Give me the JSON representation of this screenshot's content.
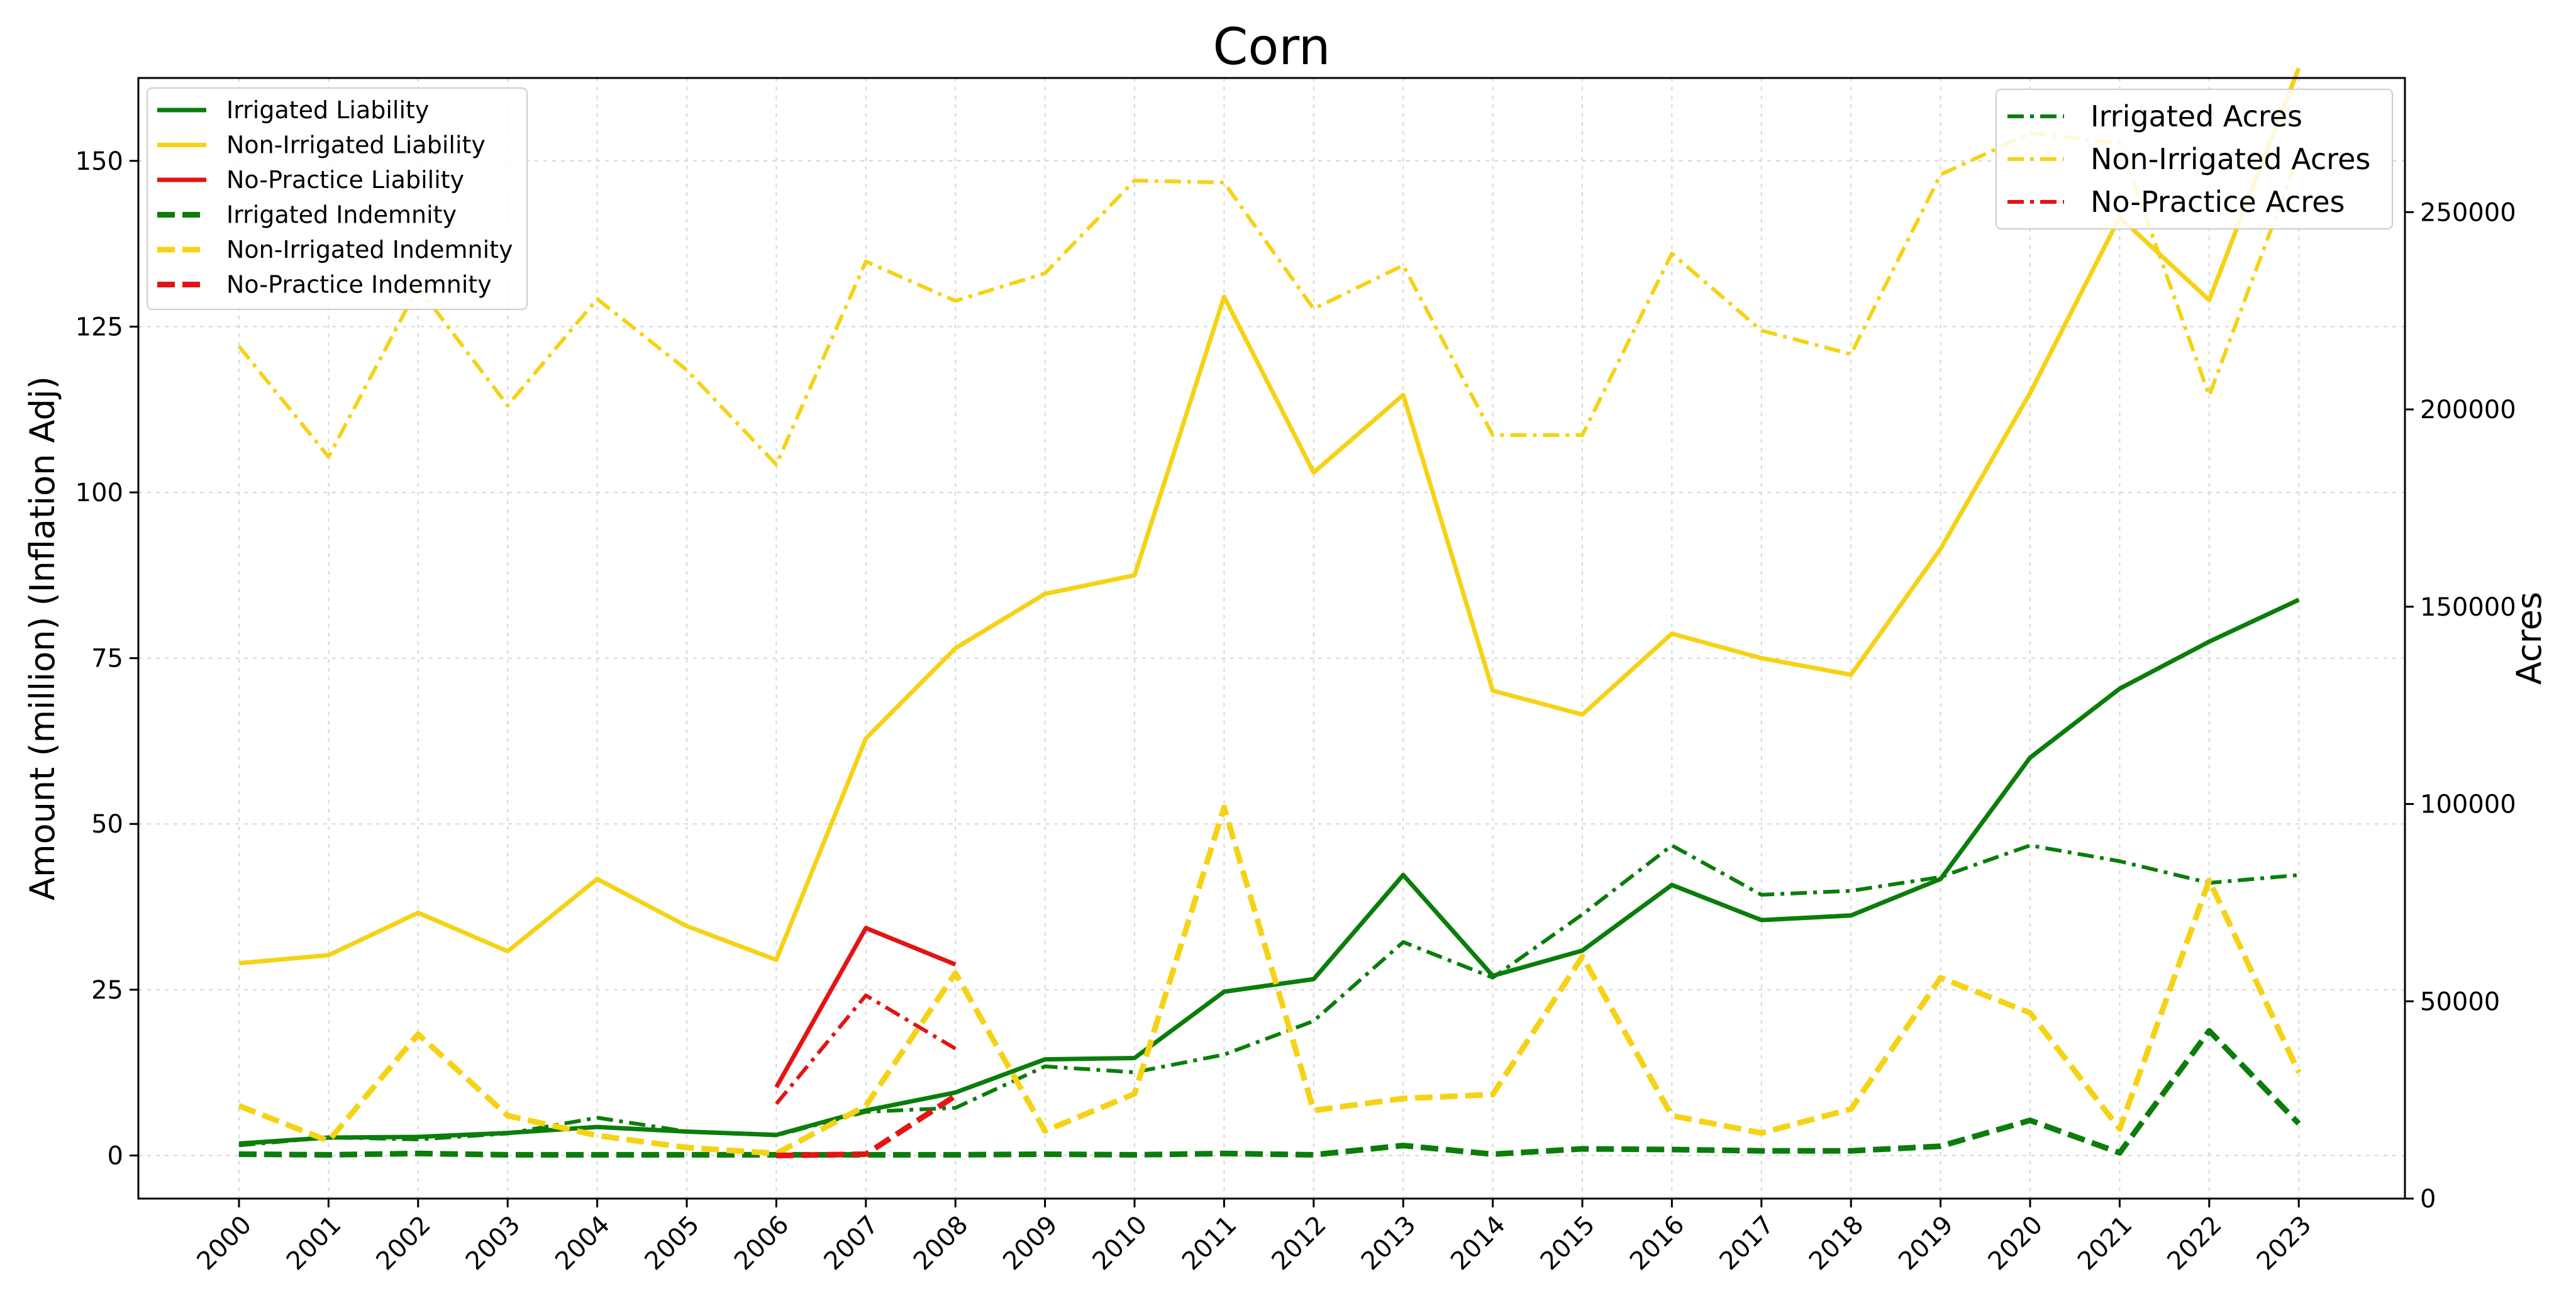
{
  "chart_data": {
    "type": "line",
    "title": "Corn",
    "ylabel_left": "Amount (million) (Inflation Adj)",
    "ylabel_right": "Acres",
    "xlabel": "",
    "x": [
      2000,
      2001,
      2002,
      2003,
      2004,
      2005,
      2006,
      2007,
      2008,
      2009,
      2010,
      2011,
      2012,
      2013,
      2014,
      2015,
      2016,
      2017,
      2018,
      2019,
      2020,
      2021,
      2022,
      2023
    ],
    "x_tick_labels": [
      "2000",
      "2001",
      "2002",
      "2003",
      "2004",
      "2005",
      "2006",
      "2007",
      "2008",
      "2009",
      "2010",
      "2011",
      "2012",
      "2013",
      "2014",
      "2015",
      "2016",
      "2017",
      "2018",
      "2019",
      "2020",
      "2021",
      "2022",
      "2023"
    ],
    "ylim_left": [
      -6.5,
      162.5
    ],
    "yticks_left": [
      0,
      25,
      50,
      75,
      100,
      125,
      150
    ],
    "ylim_right": [
      0,
      284000
    ],
    "yticks_right": [
      0,
      50000,
      100000,
      150000,
      200000,
      250000
    ],
    "grid": true,
    "legend_left_position": "upper-left",
    "legend_right_position": "upper-right",
    "colors": {
      "green": "#0a7d0a",
      "yellow": "#f5d215",
      "red": "#e31414"
    },
    "series_left": [
      {
        "name": "Irrigated Liability",
        "color": "green",
        "style": "solid",
        "values": [
          1.8,
          2.7,
          2.8,
          3.4,
          4.3,
          3.6,
          3.1,
          6.8,
          9.5,
          14.5,
          14.7,
          24.7,
          26.6,
          42.3,
          27.1,
          30.9,
          40.8,
          35.5,
          36.2,
          41.7,
          60.0,
          70.4,
          77.5,
          83.8
        ]
      },
      {
        "name": "Non-Irrigated Liability",
        "color": "yellow",
        "style": "solid",
        "values": [
          29.0,
          30.2,
          36.6,
          30.8,
          41.7,
          34.6,
          29.5,
          62.9,
          76.5,
          84.7,
          87.5,
          129.5,
          103.0,
          114.7,
          70.1,
          66.5,
          78.7,
          75.0,
          72.5,
          91.5,
          115.0,
          141.5,
          129.0,
          164.0
        ]
      },
      {
        "name": "No-Practice Liability",
        "color": "red",
        "style": "solid",
        "values": [
          null,
          null,
          null,
          null,
          null,
          null,
          10.3,
          34.3,
          28.8,
          null,
          null,
          null,
          null,
          null,
          null,
          null,
          null,
          null,
          null,
          null,
          null,
          null,
          null,
          null
        ]
      },
      {
        "name": "Irrigated Indemnity",
        "color": "green",
        "style": "dashed",
        "values": [
          0.2,
          0.1,
          0.3,
          0.1,
          0.1,
          0.1,
          0.1,
          0.1,
          0.1,
          0.2,
          0.1,
          0.3,
          0.1,
          1.5,
          0.2,
          1.0,
          0.9,
          0.7,
          0.7,
          1.4,
          5.3,
          0.4,
          18.8,
          4.8
        ]
      },
      {
        "name": "Non-Irrigated Indemnity",
        "color": "yellow",
        "style": "dashed",
        "values": [
          7.5,
          2.2,
          18.3,
          6.0,
          3.0,
          1.2,
          0.3,
          7.5,
          27.5,
          3.7,
          9.3,
          52.5,
          6.8,
          8.6,
          9.2,
          30.0,
          6.0,
          3.4,
          7.0,
          26.8,
          21.5,
          4.0,
          41.5,
          12.5
        ]
      },
      {
        "name": "No-Practice Indemnity",
        "color": "red",
        "style": "dashed",
        "values": [
          null,
          null,
          null,
          null,
          null,
          null,
          0.0,
          0.2,
          9.0,
          null,
          null,
          null,
          null,
          null,
          null,
          null,
          null,
          null,
          null,
          null,
          null,
          null,
          null,
          null
        ]
      }
    ],
    "series_right": [
      {
        "name": "Irrigated Acres",
        "color": "green",
        "style": "dashdot",
        "values": [
          13500,
          15500,
          15000,
          16500,
          20500,
          17000,
          16000,
          22000,
          23000,
          33500,
          32000,
          36500,
          45000,
          65000,
          56000,
          72000,
          89500,
          77000,
          78000,
          81500,
          89500,
          85500,
          80000,
          82000
        ]
      },
      {
        "name": "Non-Irrigated Acres",
        "color": "yellow",
        "style": "dashdot",
        "values": [
          216000,
          188000,
          231000,
          201000,
          228000,
          210000,
          186000,
          237500,
          227500,
          234500,
          258000,
          257500,
          225500,
          236500,
          193500,
          193500,
          239500,
          220000,
          214000,
          259500,
          270000,
          267500,
          203500,
          264500
        ]
      },
      {
        "name": "No-Practice Acres",
        "color": "red",
        "style": "dashdot",
        "values": [
          null,
          null,
          null,
          null,
          null,
          null,
          24000,
          51500,
          38000,
          null,
          null,
          null,
          null,
          null,
          null,
          null,
          null,
          null,
          null,
          null,
          null,
          null,
          null,
          null
        ]
      }
    ]
  }
}
